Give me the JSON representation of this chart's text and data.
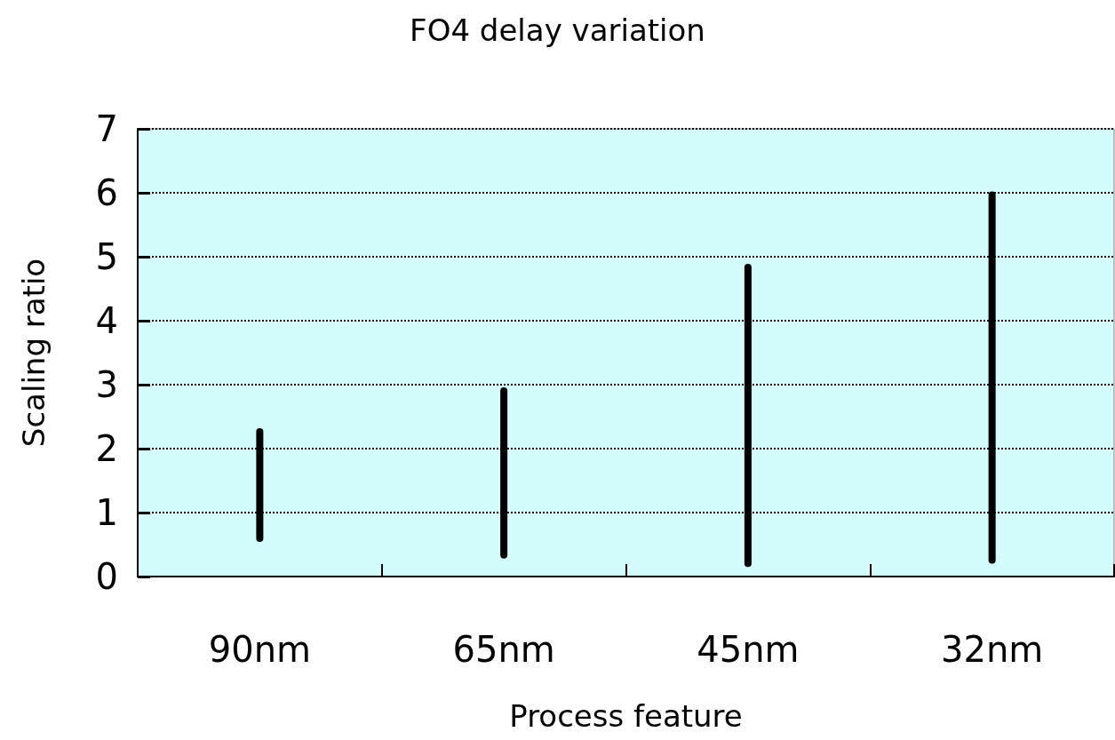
{
  "chart_data": {
    "type": "bar",
    "title": "FO4 delay variation",
    "xlabel": "Process feature",
    "ylabel": "Scaling ratio",
    "categories": [
      "90nm",
      "65nm",
      "45nm",
      "32nm"
    ],
    "base": [
      0.54,
      0.28,
      0.15,
      0.2
    ],
    "values": [
      1.78,
      2.68,
      4.74,
      5.82
    ],
    "color": "#000000",
    "ylim": [
      0,
      7
    ],
    "yticks": [
      0,
      1,
      2,
      3,
      4,
      5,
      6,
      7
    ],
    "grid": "y"
  }
}
